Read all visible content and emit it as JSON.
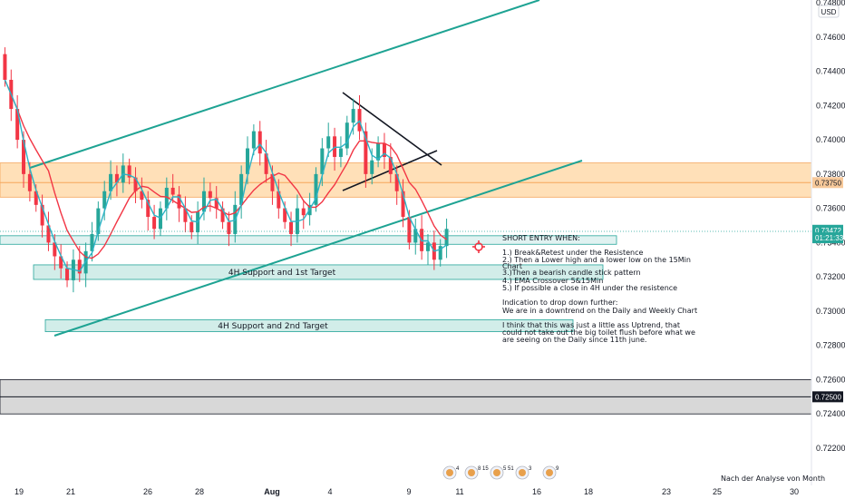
{
  "chart_data": {
    "type": "candlestick",
    "currency_badge": "USD",
    "y_ticks": [
      "0.74800",
      "0.74600",
      "0.74400",
      "0.74200",
      "0.74000",
      "0.73800",
      "0.73600",
      "0.73400",
      "0.73200",
      "0.73000",
      "0.72800",
      "0.72600",
      "0.72400",
      "0.72200"
    ],
    "y_values": [
      0.748,
      0.746,
      0.744,
      0.742,
      0.74,
      0.738,
      0.736,
      0.734,
      0.732,
      0.73,
      0.728,
      0.726,
      0.724,
      0.722
    ],
    "x_ticks": [
      "19",
      "21",
      "26",
      "28",
      "Aug",
      "4",
      "9",
      "11",
      "16",
      "18",
      "23",
      "25",
      "30"
    ],
    "price_labels": [
      {
        "text": "0.73750",
        "value": 0.7375,
        "color": "#f7c99a"
      },
      {
        "text": "0.73472",
        "value": 0.73472,
        "color": "#26a69a"
      },
      {
        "text": "01:21:33",
        "value": 0.73428,
        "color": "#26a69a"
      },
      {
        "text": "0.72500",
        "value": 0.725,
        "color": "#131722"
      }
    ],
    "zones": [
      {
        "name": "resistance",
        "y_top": 0.73865,
        "y_bottom": 0.73665,
        "color": "#ffe0b8"
      },
      {
        "name": "current-range",
        "y_top": 0.7344,
        "y_bottom": 0.7339,
        "color": "#e0f2f1"
      },
      {
        "name": "target-1",
        "label": "4H Support and 1st Target",
        "y_top": 0.7327,
        "y_bottom": 0.73185,
        "color": "#d2ede9"
      },
      {
        "name": "target-2",
        "label": "4H Support and 2nd Target",
        "y_top": 0.7295,
        "y_bottom": 0.7288,
        "color": "#d2ede9"
      },
      {
        "name": "grey-zone",
        "y_top": 0.726,
        "y_bottom": 0.724,
        "color": "#d8d8d8"
      }
    ],
    "notes": [
      "SHORT ENTRY WHEN:",
      "1.) Break&Retest under the Resistence",
      "2.) Then a Lower high and a lower low on the 15Min",
      "Chart",
      "3.)Then a bearish candle stick pattern",
      "4.) EMA Crossover 5&15Min",
      "5.) If possible a close in 4H under the resistence",
      "Indication to drop down further:",
      "We are in a downtrend on  the Daily and Weekly Chart",
      "I think that this was just a little ass Uptrend, that",
      "could not take out the big toilet flush before what we",
      "are seeing on the Daily since 11th june."
    ],
    "events": [
      "4",
      "8 15",
      "5 51",
      "3",
      "9"
    ],
    "footer": "Nach der Analyse von Month",
    "series": [
      {
        "name": "",
        "color": "#f23645"
      },
      {
        "name": "",
        "color": "#2bb3c6"
      }
    ]
  }
}
